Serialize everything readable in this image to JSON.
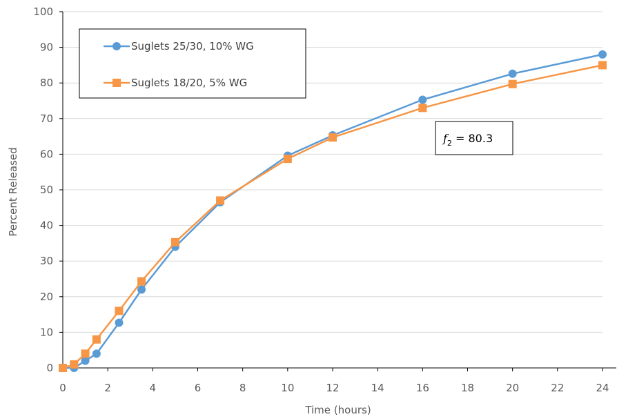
{
  "chart_data": {
    "type": "line",
    "title": "",
    "xlabel": "Time (hours)",
    "ylabel": "Percent Released",
    "xlim": [
      0,
      24
    ],
    "ylim": [
      0,
      100
    ],
    "x_ticks": [
      0,
      2,
      4,
      6,
      8,
      10,
      12,
      14,
      16,
      18,
      20,
      22,
      24
    ],
    "y_ticks": [
      0,
      10,
      20,
      30,
      40,
      50,
      60,
      70,
      80,
      90,
      100
    ],
    "grid": true,
    "legend_position": "top-left",
    "series": [
      {
        "name": "Suglets 25/30, 10% WG",
        "color": "#5b9bd5",
        "marker": "circle",
        "x": [
          0,
          0.5,
          1,
          1.5,
          2.5,
          3.5,
          5,
          7,
          10,
          12,
          16,
          20,
          24
        ],
        "y": [
          0,
          0,
          2,
          4,
          12.7,
          22,
          34,
          46.5,
          59.6,
          65.3,
          75.3,
          82.6,
          88
        ]
      },
      {
        "name": "Suglets 18/20, 5% WG",
        "color": "#f79646",
        "marker": "square",
        "x": [
          0,
          0.5,
          1,
          1.5,
          2.5,
          3.5,
          5,
          7,
          10,
          12,
          16,
          20,
          24
        ],
        "y": [
          0,
          1,
          4,
          8,
          16,
          24.3,
          35.3,
          47,
          58.7,
          64.7,
          73,
          79.7,
          85
        ]
      }
    ],
    "annotation": {
      "symbol": "f",
      "subscript": "2",
      "text": " = 80.3"
    }
  }
}
